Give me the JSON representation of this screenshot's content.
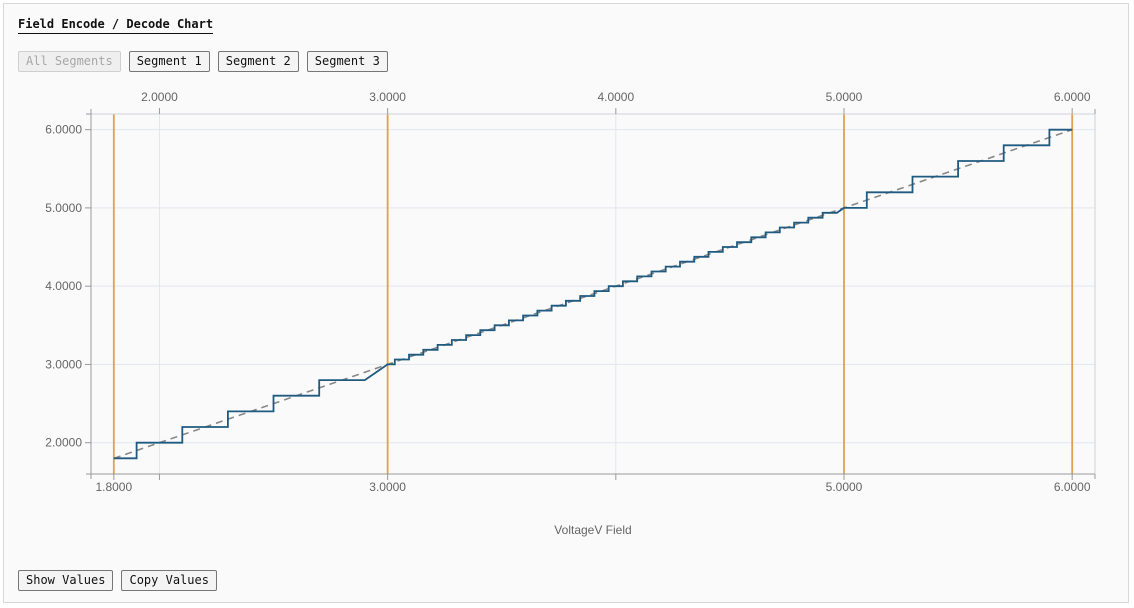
{
  "title": "Field Encode / Decode Chart",
  "segment_buttons": [
    {
      "label": "All Segments",
      "disabled": true
    },
    {
      "label": "Segment 1",
      "disabled": false
    },
    {
      "label": "Segment 2",
      "disabled": false
    },
    {
      "label": "Segment 3",
      "disabled": false
    }
  ],
  "bottom_buttons": {
    "show_values": "Show Values",
    "copy_values": "Copy Values"
  },
  "chart_data": {
    "type": "line",
    "xlabel": "VoltageV Field",
    "xlim": [
      1.7,
      6.1
    ],
    "ylim": [
      1.6,
      6.2
    ],
    "bottom_ticks": [
      1.8,
      3.0,
      5.0,
      6.0
    ],
    "bottom_tick_labels": [
      "1.8000",
      "3.0000",
      "5.0000",
      "6.0000"
    ],
    "bottom_minor_ticks": [
      2.0,
      4.0
    ],
    "top_ticks": [
      2.0,
      3.0,
      4.0,
      5.0,
      6.0
    ],
    "top_tick_labels": [
      "2.0000",
      "3.0000",
      "4.0000",
      "5.0000",
      "6.0000"
    ],
    "y_ticks": [
      2.0,
      3.0,
      4.0,
      5.0,
      6.0
    ],
    "y_tick_labels": [
      "2.0000",
      "3.0000",
      "4.0000",
      "5.0000",
      "6.0000"
    ],
    "grid": true,
    "segment_boundaries": [
      1.8,
      3.0,
      5.0,
      6.0
    ],
    "colors": {
      "step": "#1f5a80",
      "diagonal": "#888888",
      "boundary": "#e0a050",
      "grid": "#e3e6ef",
      "axis": "#999999"
    },
    "segments": [
      {
        "x_start": 1.8,
        "x_end": 3.0,
        "step": 0.2
      },
      {
        "x_start": 3.0,
        "x_end": 5.0,
        "step": 0.0625
      },
      {
        "x_start": 5.0,
        "x_end": 6.0,
        "step": 0.2
      }
    ],
    "series": [
      {
        "type": "step"
      },
      {
        "type": "diagonal",
        "x": [
          1.8,
          6.0
        ],
        "y": [
          1.8,
          6.0
        ]
      }
    ]
  }
}
